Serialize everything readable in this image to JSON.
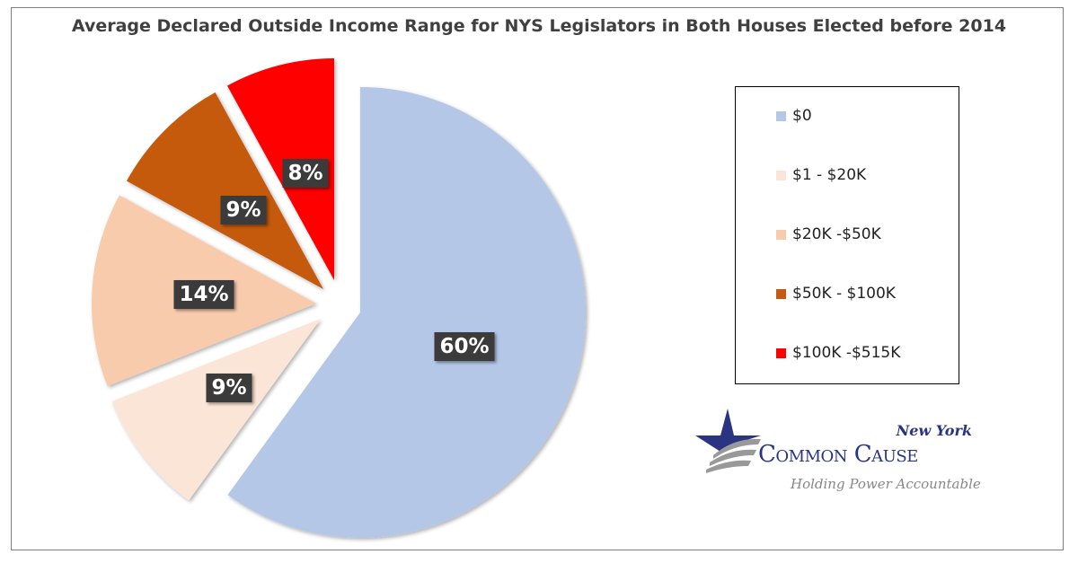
{
  "chart_data": {
    "type": "pie",
    "title": "Average Declared Outside Income Range for NYS Legislators in Both Houses Elected before 2014",
    "categories": [
      "$0",
      "$1 - $20K",
      "$20K -$50K",
      "$50K - $100K",
      "$100K -$515K"
    ],
    "values": [
      60,
      9,
      14,
      9,
      8
    ],
    "labels": [
      "60%",
      "9%",
      "14%",
      "9%",
      "8%"
    ],
    "colors": [
      "#b4c7e7",
      "#fbe5d6",
      "#f8cbad",
      "#c55a11",
      "#ff0000"
    ],
    "legend_position": "right"
  },
  "logo": {
    "region": "New York",
    "name": "Common Cause",
    "tagline": "Holding Power Accountable"
  }
}
